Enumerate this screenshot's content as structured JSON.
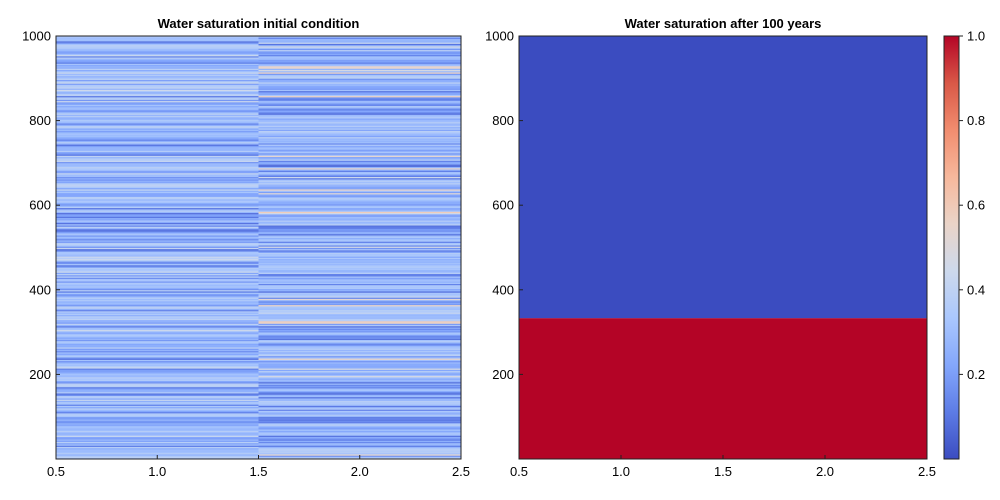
{
  "chart_data": [
    {
      "type": "heatmap",
      "title": "Water saturation initial condition",
      "xlim": [
        0.5,
        2.5
      ],
      "ylim": [
        0,
        1000
      ],
      "xticks": [
        "0.5",
        "1.0",
        "1.5",
        "2.0",
        "2.5"
      ],
      "xtick_values": [
        0.5,
        1.0,
        1.5,
        2.0,
        2.5
      ],
      "yticks": [
        "200",
        "400",
        "600",
        "800",
        "1000"
      ],
      "ytick_values": [
        200,
        400,
        600,
        800,
        1000
      ],
      "columns": [
        {
          "x_range": [
            0.5,
            1.5
          ],
          "value_range": [
            0.05,
            0.45
          ],
          "typical": 0.3
        },
        {
          "x_range": [
            1.5,
            2.5
          ],
          "value_range": [
            0.05,
            0.6
          ],
          "typical": 0.3
        }
      ],
      "colormap": "coolwarm",
      "color_range": [
        0,
        1
      ]
    },
    {
      "type": "heatmap",
      "title": "Water saturation after 100 years",
      "xlim": [
        0.5,
        2.5
      ],
      "ylim": [
        0,
        1000
      ],
      "xticks": [
        "0.5",
        "1.0",
        "1.5",
        "2.0",
        "2.5"
      ],
      "xtick_values": [
        0.5,
        1.0,
        1.5,
        2.0,
        2.5
      ],
      "yticks": [
        "200",
        "400",
        "600",
        "800",
        "1000"
      ],
      "ytick_values": [
        200,
        400,
        600,
        800,
        1000
      ],
      "regions": [
        {
          "y_range": [
            0,
            333
          ],
          "value": 1.0
        },
        {
          "y_range": [
            333,
            1000
          ],
          "value": 0.0
        }
      ],
      "colormap": "coolwarm",
      "color_range": [
        0,
        1
      ]
    }
  ],
  "colorbar": {
    "range": [
      0,
      1
    ],
    "ticks": [
      "0.2",
      "0.4",
      "0.6",
      "0.8",
      "1.0"
    ],
    "tick_values": [
      0.2,
      0.4,
      0.6,
      0.8,
      1.0
    ],
    "colormap": "coolwarm",
    "colormap_stops": [
      "#3b4cc0",
      "#5d7ce6",
      "#84a7fc",
      "#aac7fd",
      "#cdd9ec",
      "#ead4c8",
      "#f7b89c",
      "#f18d6f",
      "#d95847",
      "#b40426"
    ]
  }
}
